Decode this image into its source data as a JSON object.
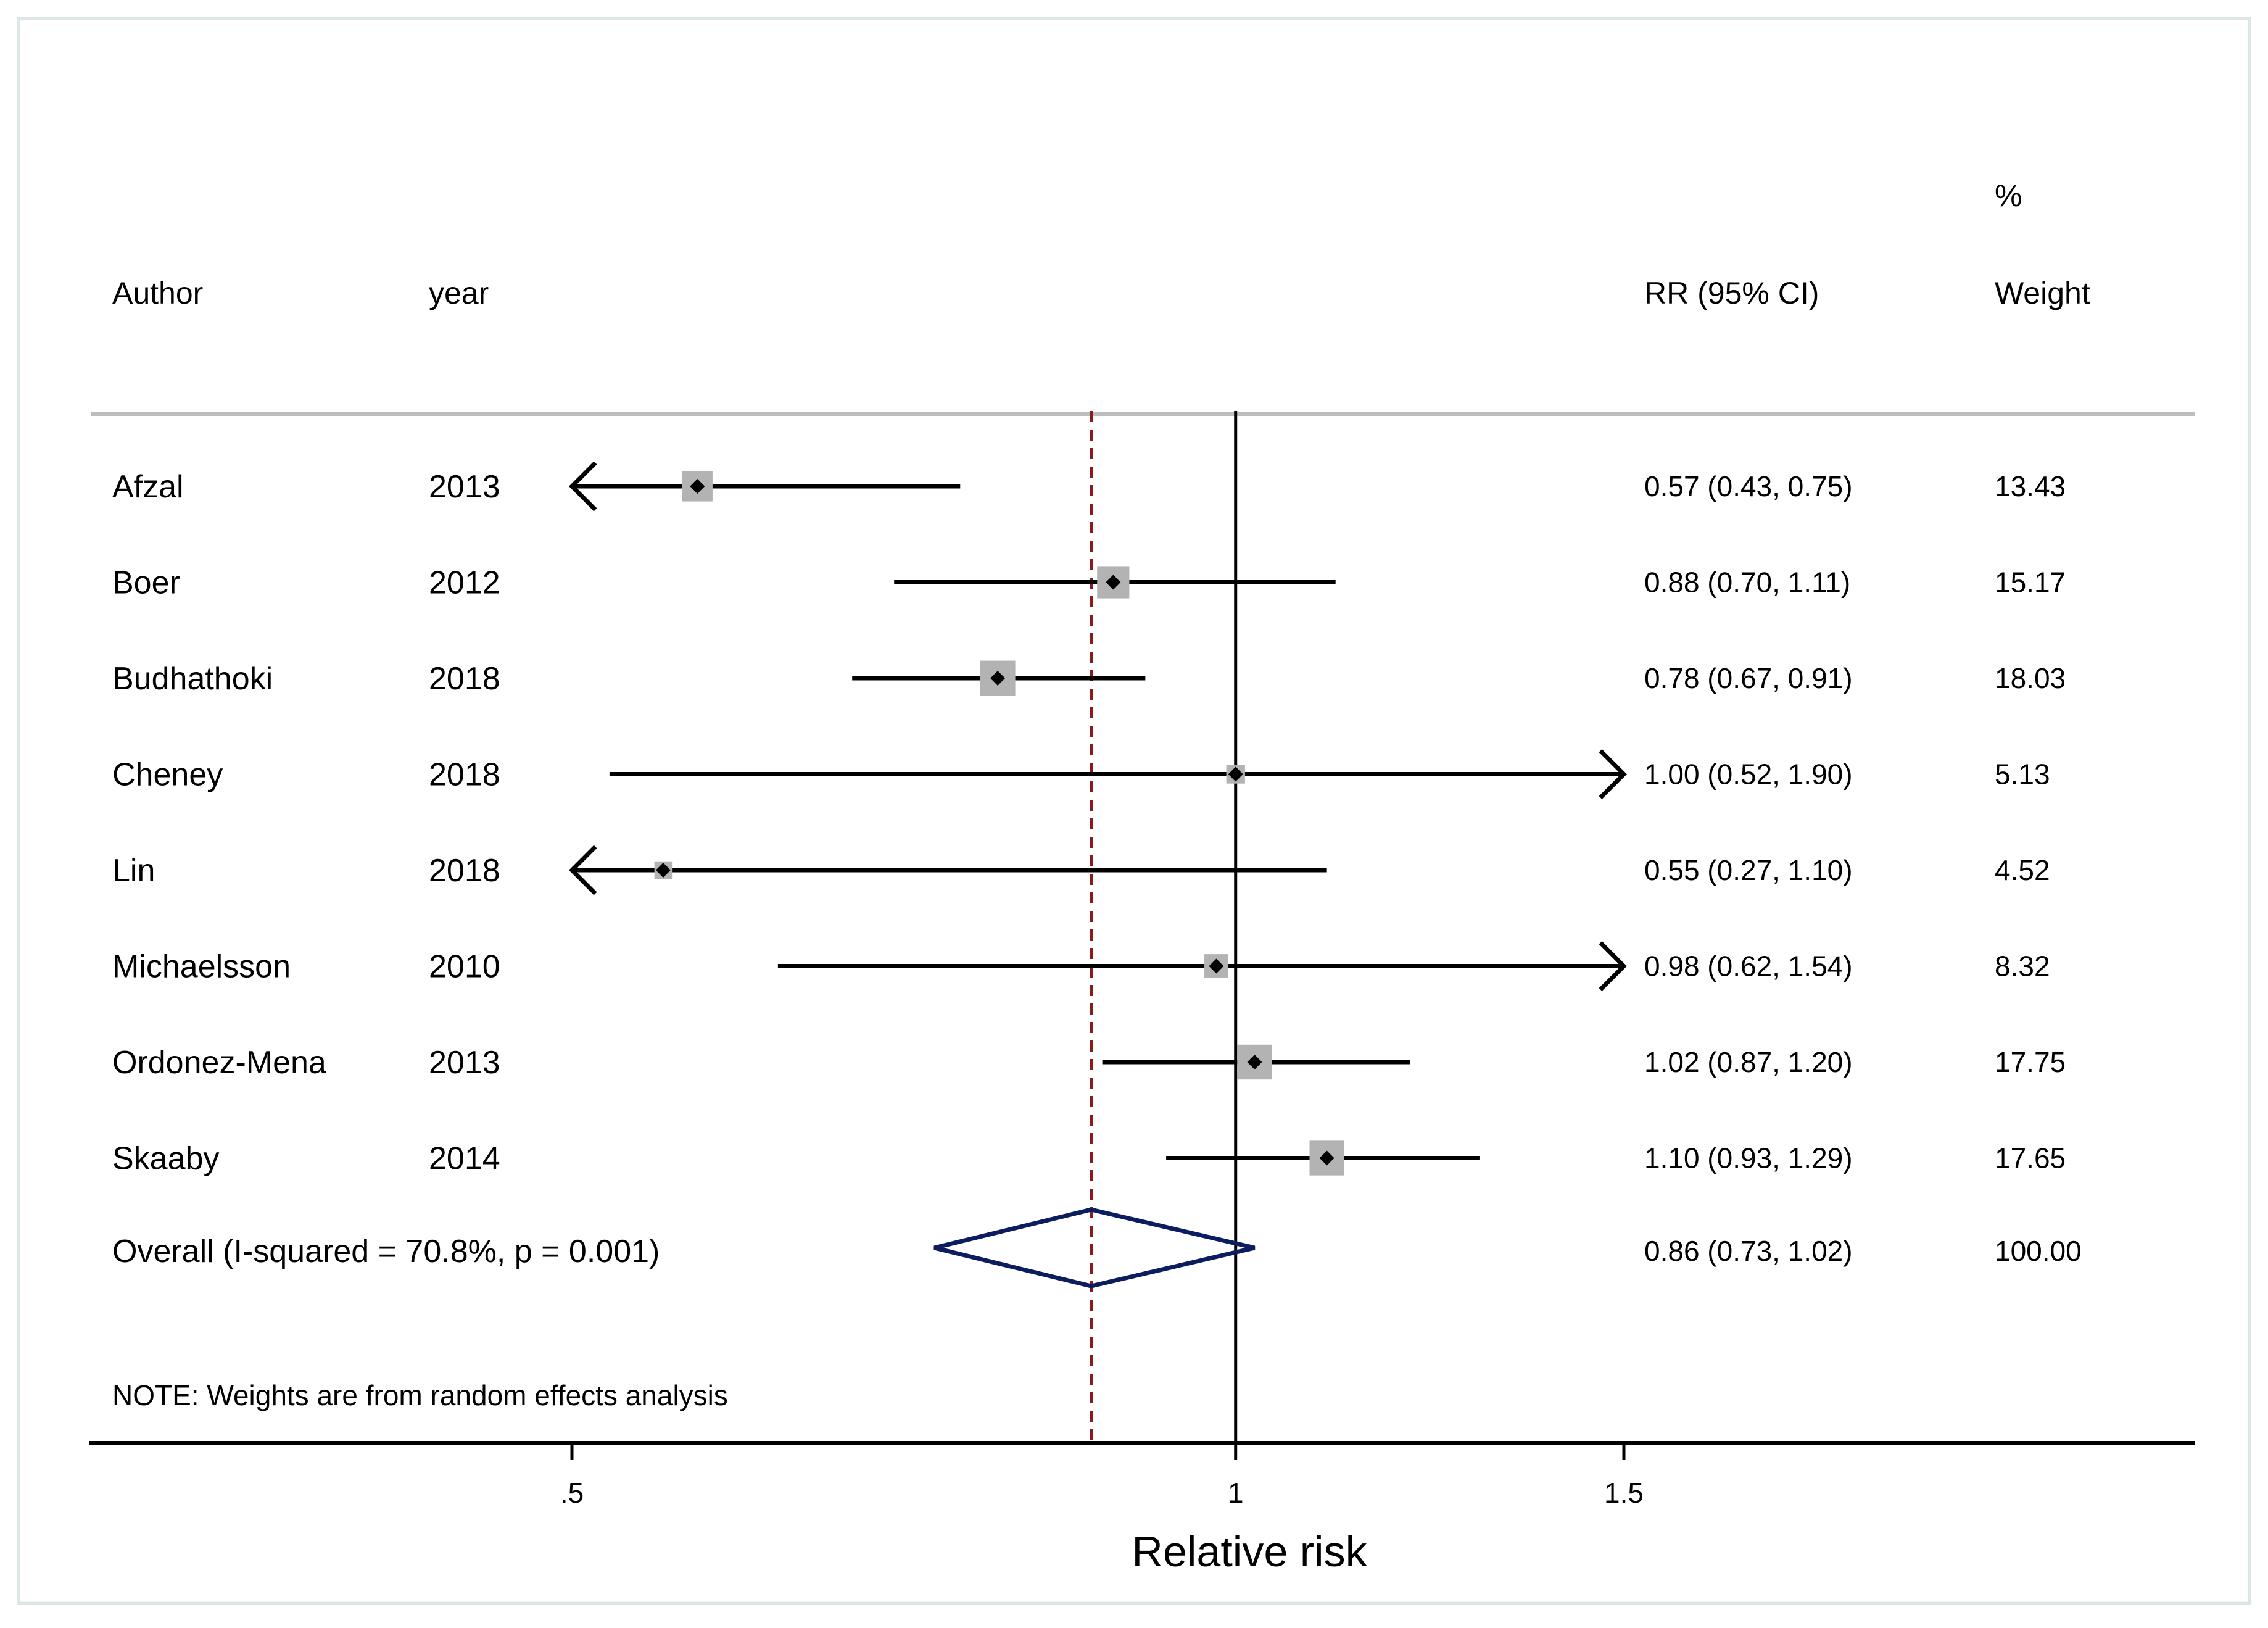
{
  "chart_data": {
    "type": "forest",
    "headers": {
      "author": "Author",
      "year": "year",
      "rr": "RR (95% CI)",
      "weight_top": "%",
      "weight": "Weight"
    },
    "studies": [
      {
        "author": "Afzal",
        "year": "2013",
        "rr": 0.57,
        "lo": 0.43,
        "hi": 0.75,
        "ci_text": "0.57 (0.43, 0.75)",
        "weight": 13.43,
        "weight_text": "13.43"
      },
      {
        "author": "Boer",
        "year": "2012",
        "rr": 0.88,
        "lo": 0.7,
        "hi": 1.11,
        "ci_text": "0.88 (0.70, 1.11)",
        "weight": 15.17,
        "weight_text": "15.17"
      },
      {
        "author": "Budhathoki",
        "year": "2018",
        "rr": 0.78,
        "lo": 0.67,
        "hi": 0.91,
        "ci_text": "0.78 (0.67, 0.91)",
        "weight": 18.03,
        "weight_text": "18.03"
      },
      {
        "author": "Cheney",
        "year": "2018",
        "rr": 1.0,
        "lo": 0.52,
        "hi": 1.9,
        "ci_text": "1.00 (0.52, 1.90)",
        "weight": 5.13,
        "weight_text": "5.13"
      },
      {
        "author": "Lin",
        "year": "2018",
        "rr": 0.55,
        "lo": 0.27,
        "hi": 1.1,
        "ci_text": "0.55 (0.27, 1.10)",
        "weight": 4.52,
        "weight_text": "4.52"
      },
      {
        "author": "Michaelsson",
        "year": "2010",
        "rr": 0.98,
        "lo": 0.62,
        "hi": 1.54,
        "ci_text": "0.98 (0.62, 1.54)",
        "weight": 8.32,
        "weight_text": "8.32"
      },
      {
        "author": "Ordonez-Mena",
        "year": "2013",
        "rr": 1.02,
        "lo": 0.87,
        "hi": 1.2,
        "ci_text": "1.02 (0.87, 1.20)",
        "weight": 17.75,
        "weight_text": "17.75"
      },
      {
        "author": "Skaaby",
        "year": "2014",
        "rr": 1.1,
        "lo": 0.93,
        "hi": 1.29,
        "ci_text": "1.10 (0.93, 1.29)",
        "weight": 17.65,
        "weight_text": "17.65"
      }
    ],
    "overall": {
      "label": "Overall  (I-squared = 70.8%, p = 0.001)",
      "rr": 0.86,
      "lo": 0.73,
      "hi": 1.02,
      "ci_text": "0.86 (0.73, 1.02)",
      "weight_text": "100.00"
    },
    "note": "NOTE: Weights are from random effects analysis",
    "xlabel": "Relative risk",
    "xlim": [
      0.5,
      1.5
    ],
    "ticks": [
      {
        "value": 0.5,
        "label": ".5"
      },
      {
        "value": 1.0,
        "label": "1"
      },
      {
        "value": 1.5,
        "label": "1.5"
      }
    ],
    "null_line": 1.0,
    "colors": {
      "line": "#000000",
      "box": "#b3b3b3",
      "diamond": "#0c1d5f",
      "overall_line": "#8b1a1a",
      "header_rule": "#bdbdbd",
      "frame": "#dde6e6"
    }
  }
}
